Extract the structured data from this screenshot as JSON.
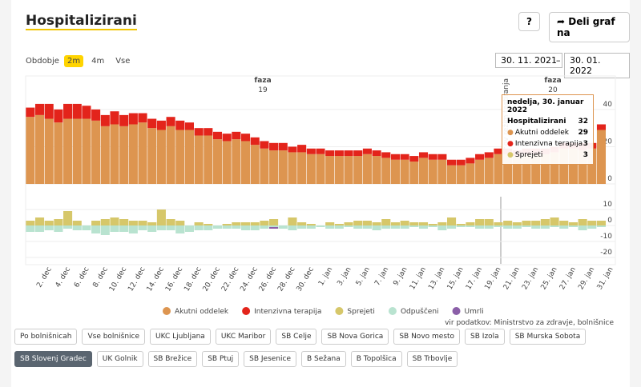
{
  "header": {
    "title": "Hospitalizirani",
    "help": "?",
    "share": "Deli graf na"
  },
  "period": {
    "label": "Obdobje",
    "options": [
      "2m",
      "4m",
      "Vse"
    ],
    "selected": 0,
    "from": "30. 11. 2021",
    "separator": "–",
    "to": "30. 01. 2022"
  },
  "annotations": [
    {
      "text": "faza",
      "number": "19"
    },
    {
      "text": "faza",
      "number": "20"
    },
    {
      "text": "nov režim testiranja"
    }
  ],
  "tooltip": {
    "title": "nedelja, 30. januar 2022",
    "rows": [
      {
        "label": "Hospitalizirani",
        "value": 32
      },
      {
        "label": "Akutni oddelek",
        "value": 29,
        "color": "#dd9550"
      },
      {
        "label": "Intenzivna terapija",
        "value": 3,
        "color": "#e3241b"
      },
      {
        "label": "Sprejeti",
        "value": 3,
        "color": "#d6c76a"
      }
    ]
  },
  "chart_data": [
    {
      "type": "bar",
      "stacked": true,
      "ylim": [
        0,
        58
      ],
      "yticks": [
        0,
        20,
        40
      ],
      "grid": true,
      "series": [
        {
          "name": "Akutni oddelek",
          "color": "#dd9550",
          "values": [
            36,
            37,
            35,
            33,
            35,
            35,
            35,
            34,
            31,
            32,
            31,
            32,
            33,
            30,
            29,
            31,
            29,
            29,
            26,
            26,
            24,
            23,
            24,
            23,
            21,
            19,
            18,
            18,
            17,
            17,
            16,
            16,
            15,
            15,
            15,
            15,
            16,
            15,
            14,
            13,
            13,
            12,
            14,
            13,
            13,
            10,
            10,
            11,
            13,
            14,
            16,
            16,
            15,
            16,
            16,
            16,
            17,
            19,
            19,
            18,
            19,
            29,
            null
          ]
        },
        {
          "name": "Intenzivna terapija",
          "color": "#e3241b",
          "values": [
            5,
            6,
            8,
            7,
            8,
            8,
            7,
            6,
            6,
            7,
            6,
            6,
            5,
            5,
            5,
            5,
            5,
            4,
            4,
            4,
            4,
            4,
            4,
            4,
            4,
            4,
            4,
            4,
            3,
            4,
            3,
            3,
            3,
            3,
            3,
            3,
            3,
            3,
            3,
            3,
            3,
            3,
            3,
            3,
            3,
            3,
            3,
            3,
            3,
            3,
            3,
            3,
            3,
            3,
            3,
            3,
            3,
            3,
            3,
            4,
            3,
            3,
            null
          ]
        }
      ]
    },
    {
      "type": "bar",
      "stacked": true,
      "ylim": [
        -24,
        18
      ],
      "yticks": [
        -20,
        -10,
        0,
        10
      ],
      "grid": true,
      "categories": [
        null,
        null,
        "2. dec",
        null,
        "4. dec",
        null,
        "6. dec",
        null,
        "8. dec",
        null,
        "10. dec",
        null,
        "12. dec",
        null,
        "14. dec",
        null,
        "16. dec",
        null,
        "18. dec",
        null,
        "20. dec",
        null,
        "22. dec",
        null,
        "24. dec",
        null,
        "26. dec",
        null,
        "28. dec",
        null,
        "30. dec",
        null,
        "1. jan",
        null,
        "3. jan",
        null,
        "5. jan",
        null,
        "7. jan",
        null,
        "9. jan",
        null,
        "11. jan",
        null,
        "13. jan",
        null,
        "15. jan",
        null,
        "17. jan",
        null,
        "19. jan",
        null,
        "21. jan",
        null,
        "23. jan",
        null,
        "25. jan",
        null,
        "27. jan",
        null,
        "29. jan",
        null,
        "31. jan"
      ],
      "series": [
        {
          "name": "Sprejeti",
          "color": "#d6c76a",
          "values": [
            3,
            5,
            3,
            4,
            9,
            3,
            0,
            3,
            4,
            5,
            4,
            3,
            3,
            2,
            10,
            4,
            3,
            0,
            2,
            1,
            0,
            1,
            2,
            2,
            2,
            3,
            4,
            0,
            5,
            2,
            1,
            0,
            2,
            1,
            2,
            3,
            3,
            2,
            4,
            2,
            3,
            2,
            2,
            1,
            2,
            5,
            1,
            2,
            4,
            4,
            2,
            3,
            2,
            3,
            3,
            4,
            5,
            3,
            2,
            4,
            3,
            3,
            null
          ]
        },
        {
          "name": "Odpuščeni",
          "color": "#b9e3d0",
          "values": [
            -4,
            -4,
            -3,
            -4,
            -2,
            -3,
            -3,
            -5,
            -6,
            -4,
            -4,
            -5,
            -3,
            -4,
            -3,
            -3,
            -5,
            -4,
            -3,
            -3,
            -2,
            -2,
            -2,
            -3,
            -3,
            -2,
            -1,
            -2,
            -3,
            -2,
            -2,
            -1,
            -2,
            -2,
            -1,
            -2,
            -2,
            -3,
            -2,
            -2,
            -2,
            -1,
            -2,
            -1,
            -3,
            -2,
            -1,
            -1,
            -2,
            -2,
            -1,
            -2,
            -2,
            -1,
            -2,
            -2,
            -1,
            -2,
            -1,
            -3,
            -2,
            -1,
            null
          ]
        },
        {
          "name": "Umrli",
          "color": "#8b5fa8",
          "values": [
            0,
            0,
            0,
            0,
            0,
            0,
            0,
            0,
            0,
            0,
            0,
            0,
            0,
            0,
            0,
            0,
            0,
            0,
            0,
            0,
            0,
            0,
            0,
            0,
            0,
            0,
            -1,
            0,
            0,
            0,
            0,
            0,
            0,
            0,
            0,
            0,
            0,
            0,
            0,
            0,
            0,
            0,
            0,
            0,
            0,
            0,
            0,
            0,
            0,
            0,
            0,
            0,
            0,
            0,
            0,
            0,
            0,
            0,
            0,
            0,
            0,
            0,
            null
          ]
        }
      ]
    }
  ],
  "source": "vir podatkov: Ministrstvo za zdravje, bolnišnice",
  "filters": {
    "options": [
      "Po bolnišnicah",
      "Vse bolnišnice",
      "UKC Ljubljana",
      "UKC Maribor",
      "SB Celje",
      "SB Nova Gorica",
      "SB Novo mesto",
      "SB Izola",
      "SB Murska Sobota",
      "SB Slovenj Gradec",
      "UK Golnik",
      "SB Brežice",
      "SB Ptuj",
      "SB Jesenice",
      "B Sežana",
      "B Topolšica",
      "SB Trbovlje"
    ],
    "selected": 9
  }
}
